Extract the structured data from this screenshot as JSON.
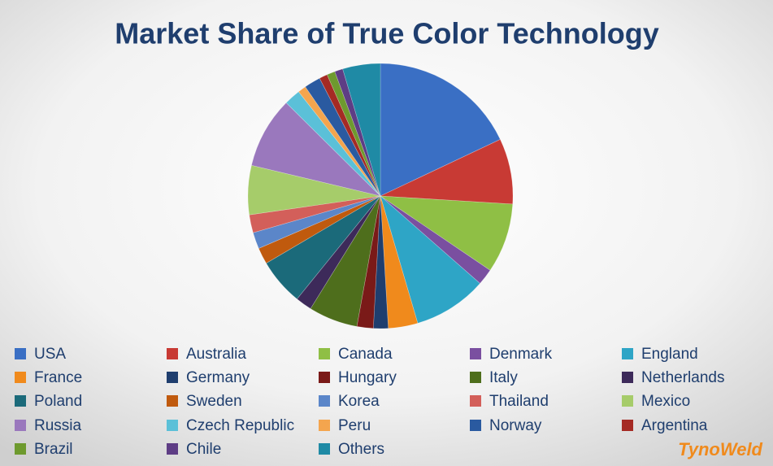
{
  "chart_data": {
    "type": "pie",
    "title": "Market Share of True Color Technology",
    "categories": [
      "USA",
      "Australia",
      "Canada",
      "Denmark",
      "England",
      "France",
      "Germany",
      "Hungary",
      "Italy",
      "Netherlands",
      "Poland",
      "Sweden",
      "Korea",
      "Thailand",
      "Mexico",
      "Russia",
      "Czech Republic",
      "Peru",
      "Norway",
      "Argentina",
      "Brazil",
      "Chile",
      "Others"
    ],
    "values": [
      18,
      8,
      8.5,
      2,
      9,
      3.6,
      1.8,
      2,
      6,
      2,
      5.7,
      2,
      2,
      2.2,
      6,
      8.7,
      2,
      1,
      2,
      1,
      1,
      1,
      4.6
    ],
    "colors": [
      "#3a6fc4",
      "#c83a34",
      "#8fbf45",
      "#7a4fa0",
      "#2ea5c6",
      "#f08a1c",
      "#1f3e6e",
      "#7a1a18",
      "#4e6e1c",
      "#3d2a5a",
      "#1b6a7a",
      "#c05a0e",
      "#5b86c9",
      "#d35f5a",
      "#a6cc6a",
      "#9a78bd",
      "#5bc0d8",
      "#f4a54e",
      "#2a5aa0",
      "#a52a24",
      "#6e9a2e",
      "#5e3d85",
      "#1f8aa5"
    ],
    "legend": "bottom"
  },
  "brand": "TynoWeld"
}
